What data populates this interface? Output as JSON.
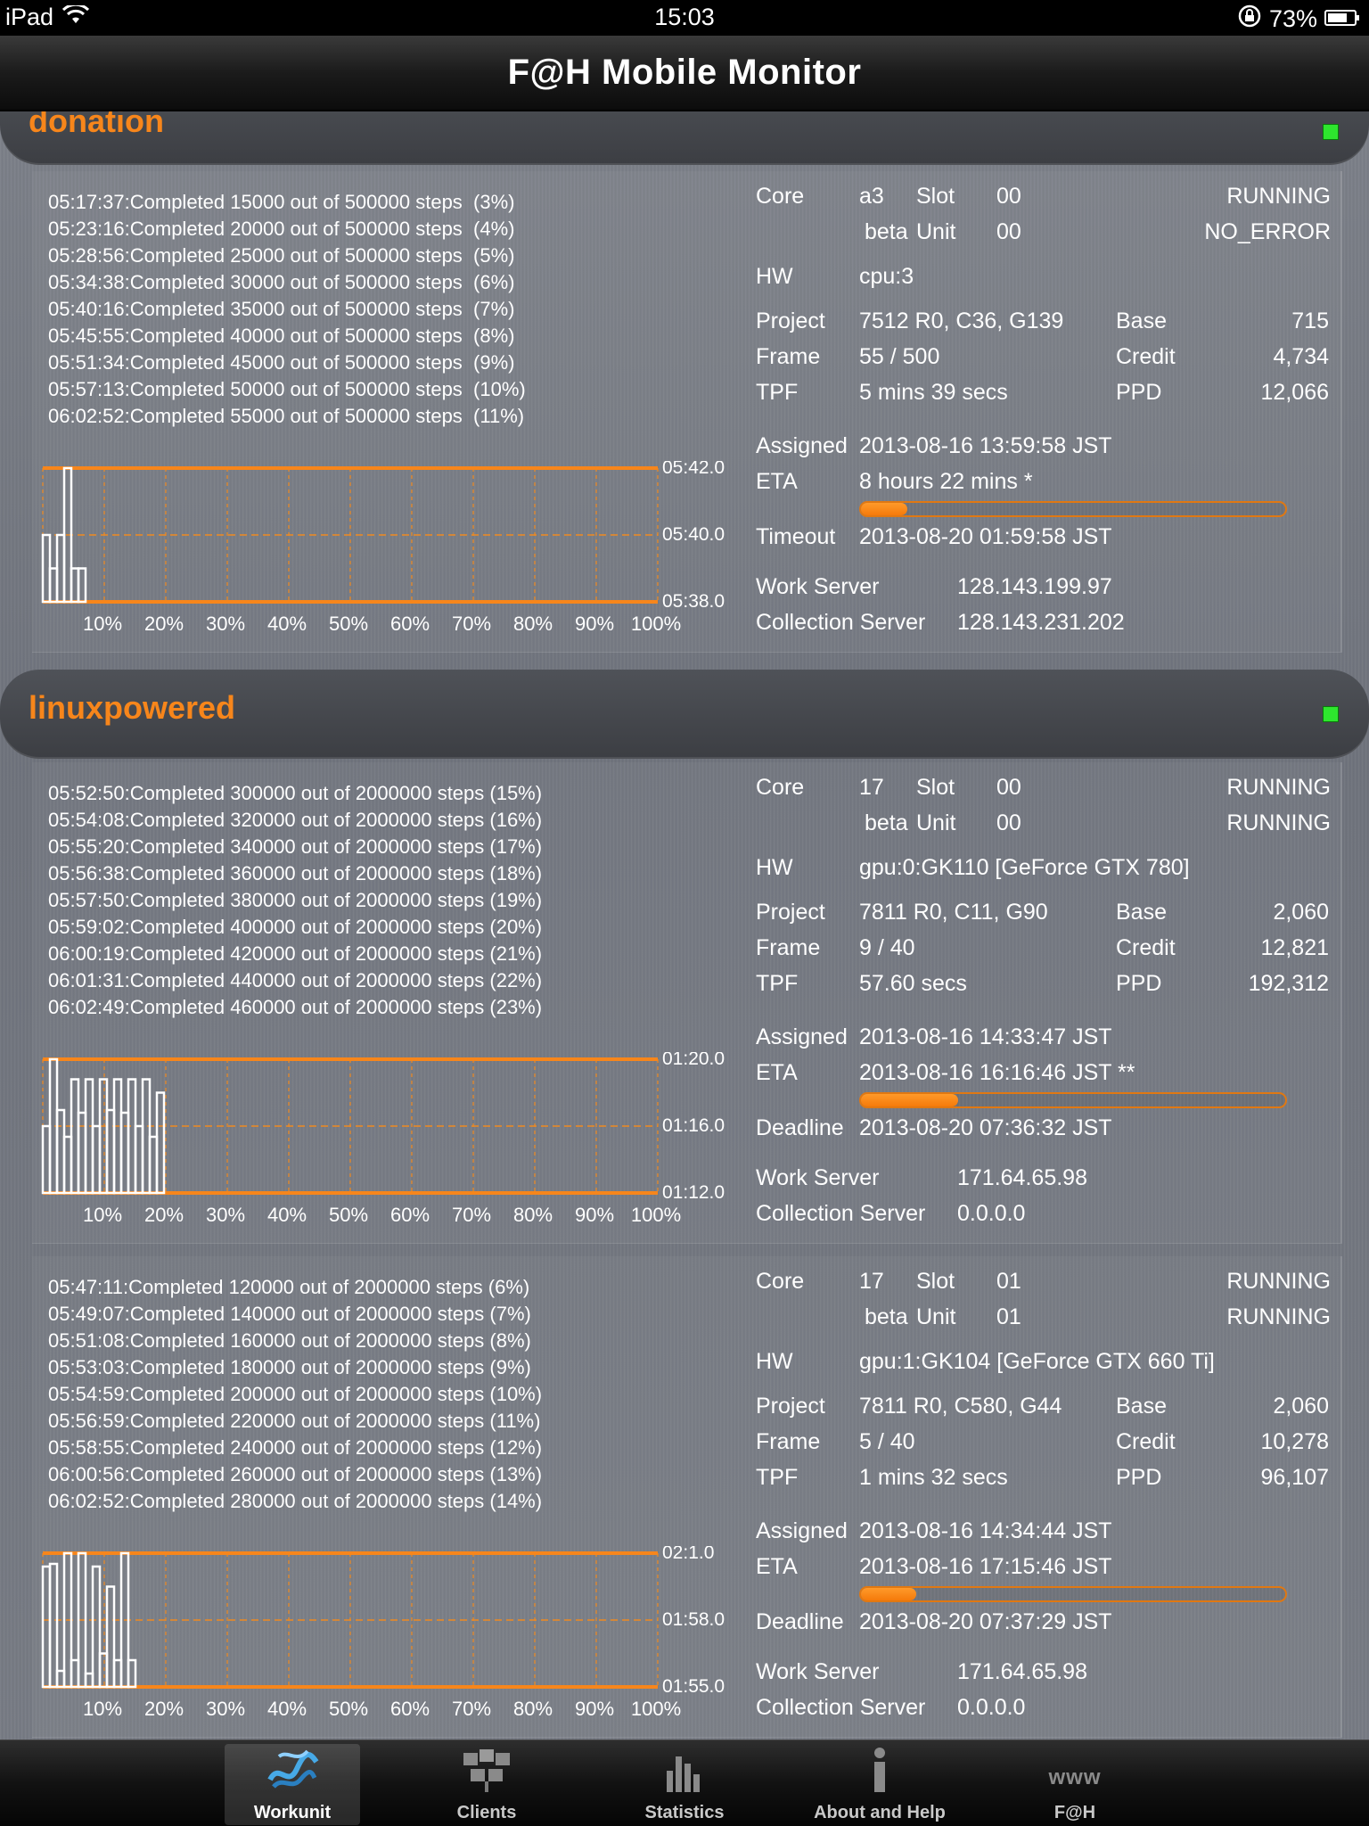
{
  "status_bar": {
    "device": "iPad",
    "time": "15:03",
    "battery": "73%"
  },
  "nav": {
    "title": "F@H Mobile Monitor"
  },
  "colors": {
    "accent": "#f7861b",
    "running": "#2ee62e"
  },
  "groups": [
    {
      "title": "donation"
    },
    {
      "title": "linuxpowered"
    }
  ],
  "workunits": [
    {
      "log": [
        "05:17:37:Completed 15000 out of 500000 steps  (3%)",
        "05:23:16:Completed 20000 out of 500000 steps  (4%)",
        "05:28:56:Completed 25000 out of 500000 steps  (5%)",
        "05:34:38:Completed 30000 out of 500000 steps  (6%)",
        "05:40:16:Completed 35000 out of 500000 steps  (7%)",
        "05:45:55:Completed 40000 out of 500000 steps  (8%)",
        "05:51:34:Completed 45000 out of 500000 steps  (9%)",
        "05:57:13:Completed 50000 out of 500000 steps  (10%)",
        "06:02:52:Completed 55000 out of 500000 steps  (11%)"
      ],
      "chart": {
        "y_labels": [
          "05:42.0",
          "05:40.0",
          "05:38.0"
        ],
        "x_labels": [
          "10%",
          "20%",
          "30%",
          "40%",
          "50%",
          "60%",
          "70%",
          "80%",
          "90%",
          "100%"
        ],
        "bars": [
          0.5,
          0.25,
          0.5,
          1.0,
          0.25,
          0.25
        ]
      },
      "core_label": "Core",
      "core": "a3",
      "slot_label": "Slot",
      "slot": "00",
      "state": "RUNNING",
      "beta": "beta",
      "unit_label": "Unit",
      "unit": "00",
      "error": "NO_ERROR",
      "hw_label": "HW",
      "hw": "cpu:3",
      "project_label": "Project",
      "project": "7512 R0, C36, G139",
      "base_label": "Base",
      "base": "715",
      "frame_label": "Frame",
      "frame": "55 / 500",
      "credit_label": "Credit",
      "credit": "4,734",
      "tpf_label": "TPF",
      "tpf": "5 mins 39 secs",
      "ppd_label": "PPD",
      "ppd": "12,066",
      "assigned_label": "Assigned",
      "assigned": "2013-08-16 13:59:58 JST",
      "eta_label": "ETA",
      "eta": "8 hours 22 mins *",
      "progress": 0.11,
      "limit_label": "Timeout",
      "limit": "2013-08-20 01:59:58 JST",
      "ws_label": "Work Server",
      "ws": "128.143.199.97",
      "cs_label": "Collection Server",
      "cs": "128.143.231.202"
    },
    {
      "log": [
        "05:52:50:Completed 300000 out of 2000000 steps (15%)",
        "05:54:08:Completed 320000 out of 2000000 steps (16%)",
        "05:55:20:Completed 340000 out of 2000000 steps (17%)",
        "05:56:38:Completed 360000 out of 2000000 steps (18%)",
        "05:57:50:Completed 380000 out of 2000000 steps (19%)",
        "05:59:02:Completed 400000 out of 2000000 steps (20%)",
        "06:00:19:Completed 420000 out of 2000000 steps (21%)",
        "06:01:31:Completed 440000 out of 2000000 steps (22%)",
        "06:02:49:Completed 460000 out of 2000000 steps (23%)"
      ],
      "chart": {
        "y_labels": [
          "01:20.0",
          "01:16.0",
          "01:12.0"
        ],
        "x_labels": [
          "10%",
          "20%",
          "30%",
          "40%",
          "50%",
          "60%",
          "70%",
          "80%",
          "90%",
          "100%"
        ],
        "bars": [
          0.5,
          1.0,
          0.62,
          0.42,
          0.85,
          0.6,
          0.85,
          0.5,
          0.85,
          0.62,
          0.85,
          0.6,
          0.85,
          0.5,
          0.85,
          0.42,
          0.75
        ]
      },
      "core_label": "Core",
      "core": "17",
      "slot_label": "Slot",
      "slot": "00",
      "state": "RUNNING",
      "beta": "beta",
      "unit_label": "Unit",
      "unit": "00",
      "error": "RUNNING",
      "hw_label": "HW",
      "hw": "gpu:0:GK110 [GeForce GTX 780]",
      "project_label": "Project",
      "project": "7811 R0, C11, G90",
      "base_label": "Base",
      "base": "2,060",
      "frame_label": "Frame",
      "frame": "9 / 40",
      "credit_label": "Credit",
      "credit": "12,821",
      "tpf_label": "TPF",
      "tpf": "57.60 secs",
      "ppd_label": "PPD",
      "ppd": "192,312",
      "assigned_label": "Assigned",
      "assigned": "2013-08-16 14:33:47 JST",
      "eta_label": "ETA",
      "eta": "2013-08-16 16:16:46 JST **",
      "progress": 0.23,
      "limit_label": "Deadline",
      "limit": "2013-08-20 07:36:32 JST",
      "ws_label": "Work Server",
      "ws": "171.64.65.98",
      "cs_label": "Collection Server",
      "cs": "0.0.0.0"
    },
    {
      "log": [
        "05:47:11:Completed 120000 out of 2000000 steps (6%)",
        "05:49:07:Completed 140000 out of 2000000 steps (7%)",
        "05:51:08:Completed 160000 out of 2000000 steps (8%)",
        "05:53:03:Completed 180000 out of 2000000 steps (9%)",
        "05:54:59:Completed 200000 out of 2000000 steps (10%)",
        "05:56:59:Completed 220000 out of 2000000 steps (11%)",
        "05:58:55:Completed 240000 out of 2000000 steps (12%)",
        "06:00:56:Completed 260000 out of 2000000 steps (13%)",
        "06:02:52:Completed 280000 out of 2000000 steps (14%)"
      ],
      "chart": {
        "y_labels": [
          "02:1.0",
          "01:58.0",
          "01:55.0"
        ],
        "x_labels": [
          "10%",
          "20%",
          "30%",
          "40%",
          "50%",
          "60%",
          "70%",
          "80%",
          "90%",
          "100%"
        ],
        "bars": [
          0.9,
          0.92,
          0.12,
          1.0,
          0.2,
          1.0,
          0.1,
          0.9,
          0.25,
          0.75,
          0.2,
          1.0,
          0.2
        ]
      },
      "core_label": "Core",
      "core": "17",
      "slot_label": "Slot",
      "slot": "01",
      "state": "RUNNING",
      "beta": "beta",
      "unit_label": "Unit",
      "unit": "01",
      "error": "RUNNING",
      "hw_label": "HW",
      "hw": "gpu:1:GK104 [GeForce GTX 660 Ti]",
      "project_label": "Project",
      "project": "7811 R0, C580, G44",
      "base_label": "Base",
      "base": "2,060",
      "frame_label": "Frame",
      "frame": "5 / 40",
      "credit_label": "Credit",
      "credit": "10,278",
      "tpf_label": "TPF",
      "tpf": "1 mins 32 secs",
      "ppd_label": "PPD",
      "ppd": "96,107",
      "assigned_label": "Assigned",
      "assigned": "2013-08-16 14:34:44 JST",
      "eta_label": "ETA",
      "eta": "2013-08-16 17:15:46 JST",
      "progress": 0.13,
      "limit_label": "Deadline",
      "limit": "2013-08-20 07:37:29 JST",
      "ws_label": "Work Server",
      "ws": "171.64.65.98",
      "cs_label": "Collection Server",
      "cs": "0.0.0.0"
    }
  ],
  "tabs": [
    {
      "label": "Workunit",
      "icon": "protein-icon",
      "active": true
    },
    {
      "label": "Clients",
      "icon": "clients-icon",
      "active": false
    },
    {
      "label": "Statistics",
      "icon": "statistics-icon",
      "active": false
    },
    {
      "label": "About and Help",
      "icon": "info-icon",
      "active": false
    },
    {
      "label": "F@H",
      "icon": "www-icon",
      "active": false,
      "icon_text": "www"
    }
  ]
}
